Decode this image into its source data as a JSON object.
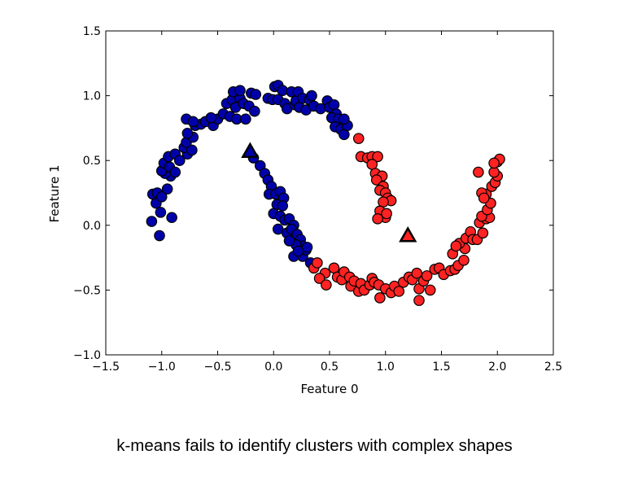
{
  "caption": "k-means fails to identify clusters with complex shapes",
  "colors": {
    "cluster0": "#0000aa",
    "cluster1": "#ff2222",
    "edge": "#000000"
  },
  "chart_data": {
    "type": "scatter",
    "title": "",
    "xlabel": "Feature 0",
    "ylabel": "Feature 1",
    "xlim": [
      -1.5,
      2.5
    ],
    "ylim": [
      -1.0,
      1.5
    ],
    "xticks": [
      -1.5,
      -1.0,
      -0.5,
      0.0,
      0.5,
      1.0,
      1.5,
      2.0,
      2.5
    ],
    "yticks": [
      -1.0,
      -0.5,
      0.0,
      0.5,
      1.0,
      1.5
    ],
    "xtick_labels": [
      "−1.5",
      "−1.0",
      "−0.5",
      "0.0",
      "0.5",
      "1.0",
      "1.5",
      "2.0",
      "2.5"
    ],
    "ytick_labels": [
      "−1.0",
      "−0.5",
      "0.0",
      "0.5",
      "1.0",
      "1.5"
    ],
    "grid": false,
    "series": [
      {
        "color": "#0000aa",
        "marker": "circle",
        "points": [
          [
            -1.02,
            -0.08
          ],
          [
            -1.09,
            0.03
          ],
          [
            -0.91,
            0.06
          ],
          [
            -1.01,
            0.1
          ],
          [
            -1.05,
            0.17
          ],
          [
            -1.08,
            0.24
          ],
          [
            -1.04,
            0.25
          ],
          [
            -1.0,
            0.22
          ],
          [
            -0.95,
            0.28
          ],
          [
            -0.92,
            0.38
          ],
          [
            -0.97,
            0.4
          ],
          [
            -1.0,
            0.42
          ],
          [
            -0.98,
            0.48
          ],
          [
            -0.93,
            0.45
          ],
          [
            -0.88,
            0.41
          ],
          [
            -0.94,
            0.53
          ],
          [
            -0.88,
            0.55
          ],
          [
            -0.84,
            0.5
          ],
          [
            -0.77,
            0.55
          ],
          [
            -0.8,
            0.6
          ],
          [
            -0.73,
            0.58
          ],
          [
            -0.78,
            0.64
          ],
          [
            -0.72,
            0.68
          ],
          [
            -0.77,
            0.71
          ],
          [
            -0.7,
            0.77
          ],
          [
            -0.65,
            0.78
          ],
          [
            -0.78,
            0.82
          ],
          [
            -0.72,
            0.8
          ],
          [
            -0.61,
            0.8
          ],
          [
            -0.54,
            0.77
          ],
          [
            -0.5,
            0.82
          ],
          [
            -0.56,
            0.83
          ],
          [
            -0.45,
            0.86
          ],
          [
            -0.39,
            0.84
          ],
          [
            -0.33,
            0.82
          ],
          [
            -0.42,
            0.94
          ],
          [
            -0.37,
            0.97
          ],
          [
            -0.34,
            0.91
          ],
          [
            -0.3,
            0.98
          ],
          [
            -0.36,
            1.03
          ],
          [
            -0.3,
            1.04
          ],
          [
            -0.27,
            0.94
          ],
          [
            -0.25,
            0.82
          ],
          [
            -0.22,
            0.92
          ],
          [
            -0.2,
            1.02
          ],
          [
            -0.17,
            0.88
          ],
          [
            -0.16,
            1.01
          ],
          [
            -0.05,
            0.98
          ],
          [
            -0.01,
            0.97
          ],
          [
            0.01,
            1.07
          ],
          [
            0.04,
            1.08
          ],
          [
            0.08,
            1.04
          ],
          [
            0.04,
            0.97
          ],
          [
            0.1,
            0.94
          ],
          [
            0.12,
            0.9
          ],
          [
            0.16,
            1.03
          ],
          [
            0.19,
            0.93
          ],
          [
            0.2,
            0.96
          ],
          [
            0.22,
            1.03
          ],
          [
            0.23,
            0.91
          ],
          [
            0.26,
            0.98
          ],
          [
            0.29,
            0.89
          ],
          [
            0.32,
            0.97
          ],
          [
            0.34,
            1.0
          ],
          [
            0.36,
            0.92
          ],
          [
            0.42,
            0.9
          ],
          [
            0.48,
            0.96
          ],
          [
            0.5,
            0.91
          ],
          [
            0.54,
            0.93
          ],
          [
            0.56,
            0.86
          ],
          [
            0.52,
            0.83
          ],
          [
            0.58,
            0.82
          ],
          [
            0.55,
            0.76
          ],
          [
            0.6,
            0.74
          ],
          [
            0.63,
            0.7
          ],
          [
            0.66,
            0.77
          ],
          [
            0.63,
            0.82
          ],
          [
            -0.18,
            0.52
          ],
          [
            -0.12,
            0.46
          ],
          [
            -0.08,
            0.4
          ],
          [
            -0.05,
            0.35
          ],
          [
            -0.02,
            0.3
          ],
          [
            -0.04,
            0.24
          ],
          [
            0.02,
            0.24
          ],
          [
            0.06,
            0.26
          ],
          [
            0.09,
            0.21
          ],
          [
            0.03,
            0.16
          ],
          [
            0.08,
            0.15
          ],
          [
            0.0,
            0.09
          ],
          [
            0.06,
            0.07
          ],
          [
            0.1,
            0.04
          ],
          [
            0.14,
            0.05
          ],
          [
            0.18,
            0.0
          ],
          [
            0.04,
            -0.03
          ],
          [
            0.12,
            -0.06
          ],
          [
            0.16,
            -0.03
          ],
          [
            0.21,
            -0.07
          ],
          [
            0.24,
            -0.11
          ],
          [
            0.26,
            -0.16
          ],
          [
            0.2,
            -0.15
          ],
          [
            0.14,
            -0.12
          ],
          [
            0.18,
            -0.24
          ],
          [
            0.26,
            -0.24
          ],
          [
            0.29,
            -0.19
          ],
          [
            0.33,
            -0.29
          ],
          [
            0.3,
            -0.17
          ],
          [
            0.22,
            -0.2
          ]
        ]
      },
      {
        "color": "#ff2222",
        "marker": "circle",
        "points": [
          [
            0.76,
            0.67
          ],
          [
            0.78,
            0.53
          ],
          [
            0.84,
            0.52
          ],
          [
            0.88,
            0.53
          ],
          [
            0.93,
            0.53
          ],
          [
            0.88,
            0.47
          ],
          [
            0.91,
            0.4
          ],
          [
            0.97,
            0.38
          ],
          [
            0.92,
            0.35
          ],
          [
            0.98,
            0.3
          ],
          [
            0.95,
            0.27
          ],
          [
            1.0,
            0.25
          ],
          [
            1.02,
            0.21
          ],
          [
            1.05,
            0.19
          ],
          [
            0.98,
            0.18
          ],
          [
            0.95,
            0.11
          ],
          [
            1.0,
            0.06
          ],
          [
            0.93,
            0.05
          ],
          [
            1.01,
            0.09
          ],
          [
            0.36,
            -0.33
          ],
          [
            0.39,
            -0.29
          ],
          [
            0.46,
            -0.37
          ],
          [
            0.41,
            -0.41
          ],
          [
            0.47,
            -0.46
          ],
          [
            0.54,
            -0.33
          ],
          [
            0.57,
            -0.4
          ],
          [
            0.61,
            -0.42
          ],
          [
            0.63,
            -0.36
          ],
          [
            0.68,
            -0.4
          ],
          [
            0.69,
            -0.47
          ],
          [
            0.72,
            -0.43
          ],
          [
            0.76,
            -0.51
          ],
          [
            0.78,
            -0.45
          ],
          [
            0.81,
            -0.5
          ],
          [
            0.86,
            -0.46
          ],
          [
            0.88,
            -0.41
          ],
          [
            0.9,
            -0.44
          ],
          [
            0.94,
            -0.46
          ],
          [
            0.95,
            -0.56
          ],
          [
            1.0,
            -0.49
          ],
          [
            1.05,
            -0.52
          ],
          [
            1.08,
            -0.47
          ],
          [
            1.12,
            -0.51
          ],
          [
            1.16,
            -0.44
          ],
          [
            1.21,
            -0.4
          ],
          [
            1.24,
            -0.42
          ],
          [
            1.28,
            -0.37
          ],
          [
            1.3,
            -0.49
          ],
          [
            1.3,
            -0.58
          ],
          [
            1.34,
            -0.43
          ],
          [
            1.37,
            -0.39
          ],
          [
            1.4,
            -0.5
          ],
          [
            1.44,
            -0.34
          ],
          [
            1.48,
            -0.33
          ],
          [
            1.52,
            -0.38
          ],
          [
            1.58,
            -0.35
          ],
          [
            1.62,
            -0.34
          ],
          [
            1.65,
            -0.31
          ],
          [
            1.7,
            -0.27
          ],
          [
            1.71,
            -0.18
          ],
          [
            1.66,
            -0.14
          ],
          [
            1.6,
            -0.22
          ],
          [
            1.63,
            -0.16
          ],
          [
            1.72,
            -0.1
          ],
          [
            1.76,
            -0.05
          ],
          [
            1.78,
            -0.11
          ],
          [
            1.82,
            -0.11
          ],
          [
            1.84,
            0.02
          ],
          [
            1.87,
            -0.06
          ],
          [
            1.9,
            0.05
          ],
          [
            1.93,
            0.06
          ],
          [
            1.86,
            0.07
          ],
          [
            1.91,
            0.12
          ],
          [
            1.94,
            0.17
          ],
          [
            1.9,
            0.24
          ],
          [
            1.86,
            0.25
          ],
          [
            1.88,
            0.21
          ],
          [
            1.95,
            0.3
          ],
          [
            1.98,
            0.33
          ],
          [
            2.0,
            0.38
          ],
          [
            1.97,
            0.41
          ],
          [
            2.0,
            0.49
          ],
          [
            2.02,
            0.51
          ],
          [
            1.97,
            0.48
          ],
          [
            1.83,
            0.41
          ]
        ]
      }
    ],
    "centers": [
      {
        "x": -0.21,
        "y": 0.57,
        "color": "#0000aa",
        "marker": "triangle"
      },
      {
        "x": 1.2,
        "y": -0.08,
        "color": "#ff2222",
        "marker": "triangle"
      }
    ]
  }
}
